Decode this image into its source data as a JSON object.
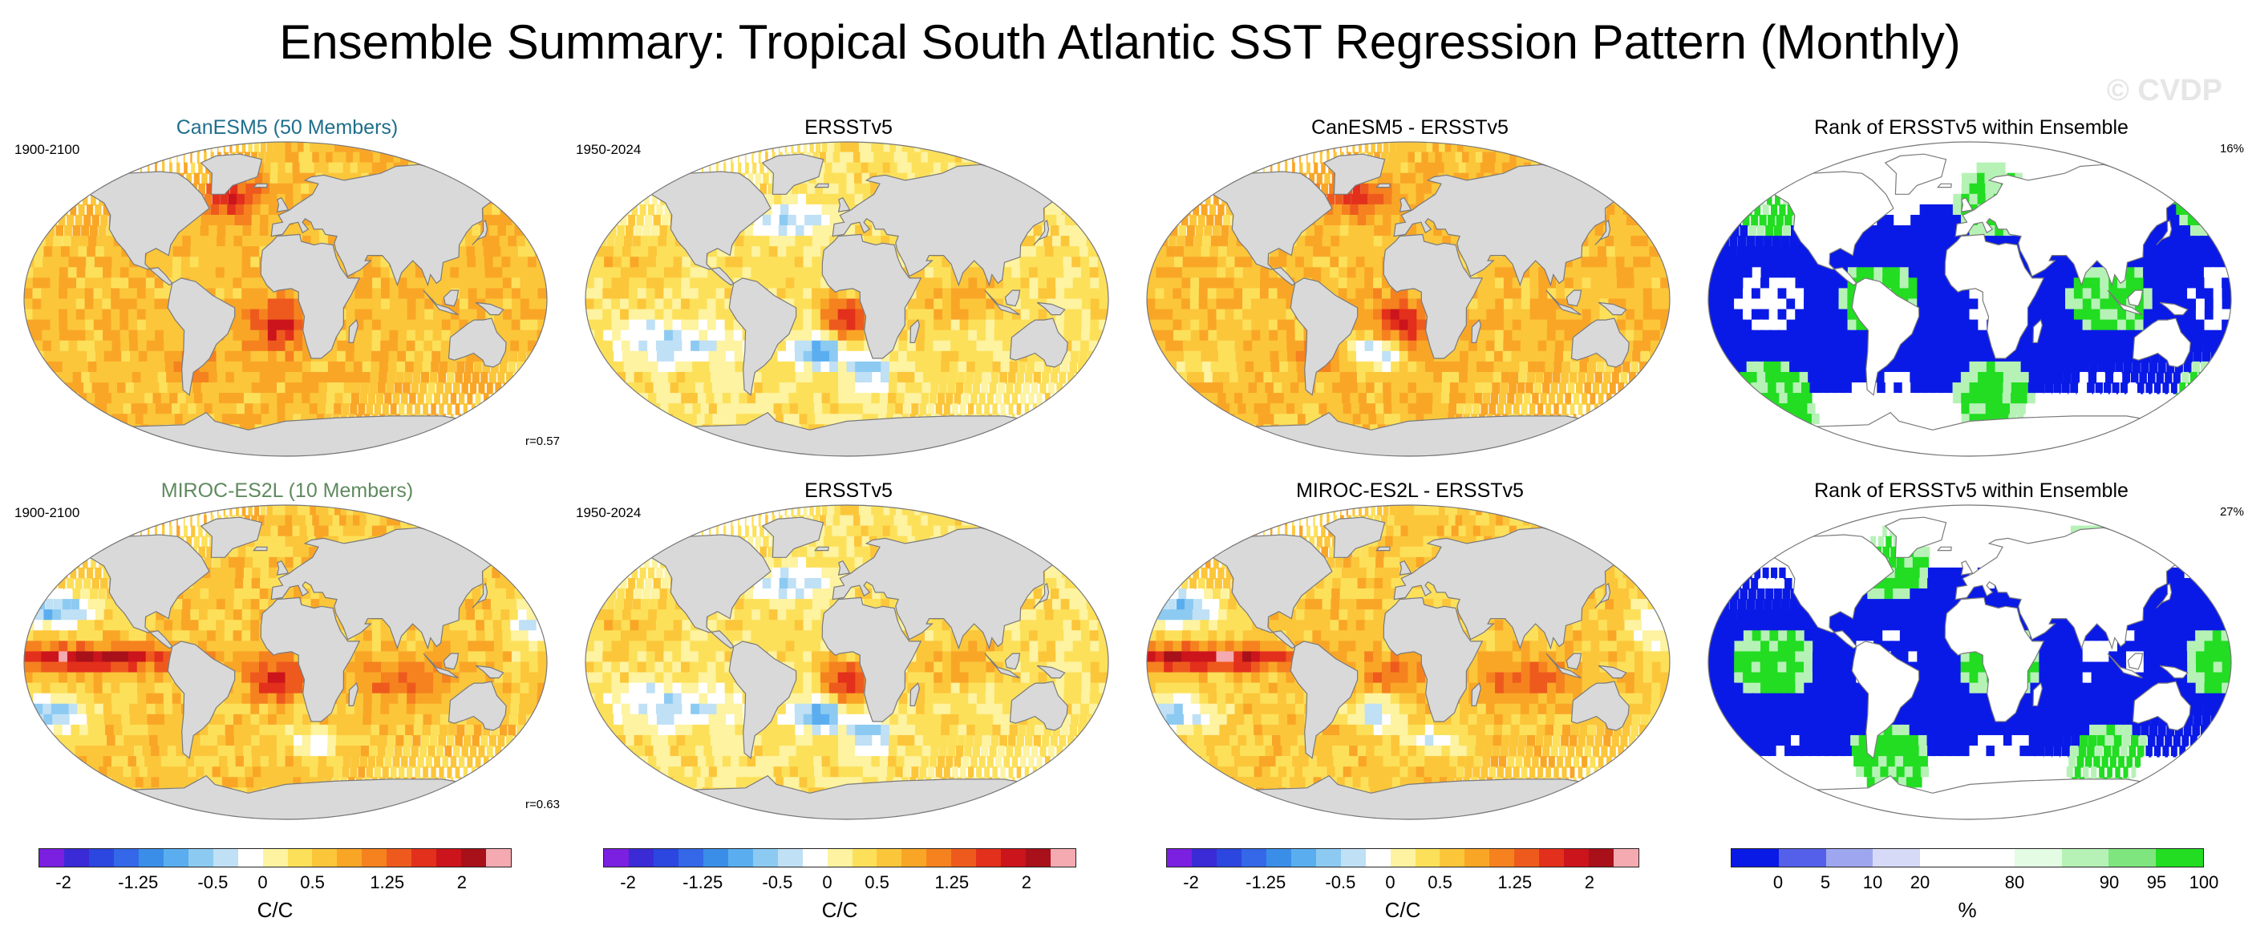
{
  "title": "Ensemble Summary: Tropical South Atlantic SST Regression Pattern (Monthly)",
  "watermark": "© CVDP",
  "colors": {
    "land": "#d9d9d9",
    "coast": "#7a7a7a",
    "canesm_title": "#1f6e8c",
    "miroc_title": "#5f8a5f"
  },
  "panels": [
    {
      "id": "p1",
      "title": "CanESM5 (50 Members)",
      "left_label": "1900-2100",
      "right_label": "",
      "corr": "r=0.57",
      "type": "anom",
      "variant": 1,
      "title_color": "canesm_title"
    },
    {
      "id": "p2",
      "title": "ERSSTv5",
      "left_label": "1950-2024",
      "right_label": "",
      "corr": "",
      "type": "anom",
      "variant": 2,
      "title_color": ""
    },
    {
      "id": "p3",
      "title": "CanESM5 - ERSSTv5",
      "left_label": "",
      "right_label": "",
      "corr": "",
      "type": "anom",
      "variant": 3,
      "title_color": ""
    },
    {
      "id": "p4",
      "title": "Rank of ERSSTv5 within Ensemble",
      "left_label": "",
      "right_label": "16%",
      "corr": "",
      "type": "rank",
      "variant": 4,
      "title_color": ""
    },
    {
      "id": "p5",
      "title": "MIROC-ES2L (10 Members)",
      "left_label": "1900-2100",
      "right_label": "",
      "corr": "r=0.63",
      "type": "anom",
      "variant": 5,
      "title_color": "miroc_title"
    },
    {
      "id": "p6",
      "title": "ERSSTv5",
      "left_label": "1950-2024",
      "right_label": "",
      "corr": "",
      "type": "anom",
      "variant": 2,
      "title_color": ""
    },
    {
      "id": "p7",
      "title": "MIROC-ES2L - ERSSTv5",
      "left_label": "",
      "right_label": "",
      "corr": "",
      "type": "anom",
      "variant": 6,
      "title_color": ""
    },
    {
      "id": "p8",
      "title": "Rank of ERSSTv5 within Ensemble",
      "left_label": "",
      "right_label": "27%",
      "corr": "",
      "type": "rank",
      "variant": 7,
      "title_color": ""
    }
  ],
  "colorbars": [
    {
      "id": "cb1",
      "unit": "C/C",
      "labels": [
        "-2",
        "-1.25",
        "-0.5",
        "0",
        "0.5",
        "1.25",
        "2"
      ],
      "colors": [
        "#7b1fe0",
        "#3a2bd6",
        "#2c46e0",
        "#3468e8",
        "#3a8ee8",
        "#5aaef0",
        "#8ccaf2",
        "#bfe0f5",
        "#ffffff",
        "#fdf3a0",
        "#fde05a",
        "#fcc63a",
        "#f9a627",
        "#f5821f",
        "#ee5a1d",
        "#e3301c",
        "#cc141c",
        "#a8101a",
        "#f4aab0"
      ],
      "label_slots": [
        1,
        4,
        7,
        9,
        11,
        14,
        17
      ]
    },
    {
      "id": "cb2",
      "unit": "C/C",
      "labels": [
        "-2",
        "-1.25",
        "-0.5",
        "0",
        "0.5",
        "1.25",
        "2"
      ],
      "colors": [
        "#7b1fe0",
        "#3a2bd6",
        "#2c46e0",
        "#3468e8",
        "#3a8ee8",
        "#5aaef0",
        "#8ccaf2",
        "#bfe0f5",
        "#ffffff",
        "#fdf3a0",
        "#fde05a",
        "#fcc63a",
        "#f9a627",
        "#f5821f",
        "#ee5a1d",
        "#e3301c",
        "#cc141c",
        "#a8101a",
        "#f4aab0"
      ],
      "label_slots": [
        1,
        4,
        7,
        9,
        11,
        14,
        17
      ]
    },
    {
      "id": "cb3",
      "unit": "C/C",
      "labels": [
        "-2",
        "-1.25",
        "-0.5",
        "0",
        "0.5",
        "1.25",
        "2"
      ],
      "colors": [
        "#7b1fe0",
        "#3a2bd6",
        "#2c46e0",
        "#3468e8",
        "#3a8ee8",
        "#5aaef0",
        "#8ccaf2",
        "#bfe0f5",
        "#ffffff",
        "#fdf3a0",
        "#fde05a",
        "#fcc63a",
        "#f9a627",
        "#f5821f",
        "#ee5a1d",
        "#e3301c",
        "#cc141c",
        "#a8101a",
        "#f4aab0"
      ],
      "label_slots": [
        1,
        4,
        7,
        9,
        11,
        14,
        17
      ]
    },
    {
      "id": "cb4",
      "unit": "%",
      "labels": [
        "0",
        "5",
        "10",
        "20",
        "80",
        "90",
        "95",
        "100"
      ],
      "colors": [
        "#0a1ae6",
        "#5560ea",
        "#9fa6f0",
        "#d6daf6",
        "#ffffff",
        "#ffffff",
        "#e4fbe4",
        "#b6f2b6",
        "#7fe67f",
        "#22dd22"
      ],
      "label_slots": [
        1,
        2,
        3,
        4,
        6,
        8,
        9,
        10
      ]
    }
  ]
}
